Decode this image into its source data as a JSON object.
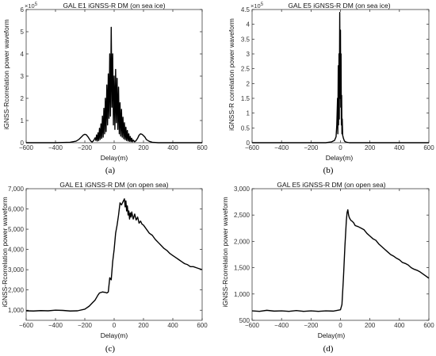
{
  "figure": {
    "captions": [
      "(a)",
      "(b)",
      "(c)",
      "(d)"
    ]
  },
  "chart_data": [
    {
      "type": "line",
      "title": "GAL E1 iGNSS-R DM (on sea ice)",
      "xlabel": "Delay(m)",
      "ylabel": "iGNSS-Rcorrelation power waveform",
      "xlim": [
        -600,
        600
      ],
      "ylim": [
        0,
        600000
      ],
      "xticks": [
        -600,
        -400,
        -200,
        0,
        200,
        400,
        600
      ],
      "yticks": [
        0,
        100000,
        200000,
        300000,
        400000,
        500000,
        600000
      ],
      "ytick_labels": [
        "0",
        "1",
        "2",
        "3",
        "4",
        "5",
        "6"
      ],
      "exponent_base": "×10",
      "exponent_power": "5",
      "grid": false,
      "series": [
        {
          "x": [
            -600,
            -500,
            -400,
            -300,
            -260,
            -240,
            -220,
            -210,
            -200,
            -190,
            -180,
            -170,
            -160,
            -150,
            -140,
            -130,
            -125,
            -120,
            -115,
            -110,
            -105,
            -100,
            -95,
            -90,
            -85,
            -80,
            -75,
            -70,
            -65,
            -60,
            -55,
            -50,
            -45,
            -40,
            -35,
            -30,
            -25,
            -20,
            -15,
            -10,
            -5,
            0,
            5,
            10,
            15,
            20,
            25,
            30,
            35,
            40,
            45,
            50,
            55,
            60,
            65,
            70,
            75,
            80,
            85,
            90,
            95,
            100,
            105,
            110,
            115,
            120,
            125,
            130,
            140,
            150,
            160,
            170,
            180,
            190,
            200,
            210,
            220,
            240,
            260,
            300,
            400,
            500,
            600
          ],
          "y": [
            0,
            0,
            0,
            2000,
            7000,
            15000,
            28000,
            35000,
            38000,
            36000,
            28000,
            18000,
            8000,
            3000,
            10000,
            22000,
            10000,
            35000,
            8000,
            45000,
            10000,
            65000,
            15000,
            85000,
            20000,
            120000,
            25000,
            155000,
            40000,
            200000,
            50000,
            260000,
            80000,
            310000,
            110000,
            400000,
            120000,
            520000,
            160000,
            400000,
            80000,
            300000,
            60000,
            330000,
            90000,
            290000,
            60000,
            250000,
            40000,
            180000,
            30000,
            150000,
            25000,
            115000,
            18000,
            90000,
            14000,
            70000,
            10000,
            55000,
            8000,
            40000,
            6000,
            28000,
            5000,
            20000,
            4000,
            12000,
            4000,
            10000,
            20000,
            34000,
            40000,
            38000,
            32000,
            25000,
            14000,
            6000,
            2000,
            0,
            0,
            0,
            0
          ]
        }
      ]
    },
    {
      "type": "line",
      "title": "GAL E5 iGNSS-R DM (on sea ice)",
      "xlabel": "Delay(m)",
      "ylabel": "iGNSS-R correlation power waveform",
      "xlim": [
        -600,
        600
      ],
      "ylim": [
        0,
        450000
      ],
      "xticks": [
        -600,
        -400,
        -200,
        0,
        200,
        400,
        600
      ],
      "yticks": [
        0,
        50000,
        100000,
        150000,
        200000,
        250000,
        300000,
        350000,
        400000,
        450000
      ],
      "ytick_labels": [
        "0",
        "0.5",
        "1",
        "1.5",
        "2",
        "2.5",
        "3",
        "3.5",
        "4",
        "4.5"
      ],
      "exponent_base": "×10",
      "exponent_power": "5",
      "grid": false,
      "series": [
        {
          "x": [
            -600,
            -200,
            -100,
            -60,
            -40,
            -30,
            -25,
            -20,
            -18,
            -15,
            -13,
            -10,
            -8,
            -5,
            -2,
            0,
            2,
            4,
            6,
            8,
            10,
            12,
            15,
            20,
            25,
            30,
            40,
            60,
            100,
            200,
            600
          ],
          "y": [
            0,
            0,
            0,
            3000,
            8000,
            20000,
            60000,
            150000,
            30000,
            260000,
            60000,
            300000,
            80000,
            440000,
            150000,
            380000,
            120000,
            300000,
            60000,
            160000,
            30000,
            80000,
            25000,
            15000,
            8000,
            4000,
            2000,
            0,
            0,
            0,
            0
          ]
        }
      ]
    },
    {
      "type": "line",
      "title": "GAL E1 iGNSS-R DM (on open sea)",
      "xlabel": "Delay(m)",
      "ylabel": "iGNSS-Rcorrelation power waveform",
      "xlim": [
        -600,
        600
      ],
      "ylim": [
        500,
        7000
      ],
      "xticks": [
        -600,
        -400,
        -200,
        0,
        200,
        400,
        600
      ],
      "yticks": [
        1000,
        2000,
        3000,
        4000,
        5000,
        6000,
        7000
      ],
      "ytick_labels": [
        "1,000",
        "2,000",
        "3,000",
        "4,000",
        "5,000",
        "6,000",
        "7,000"
      ],
      "grid": false,
      "series": [
        {
          "x": [
            -600,
            -550,
            -500,
            -450,
            -400,
            -350,
            -300,
            -250,
            -200,
            -170,
            -150,
            -130,
            -110,
            -100,
            -80,
            -60,
            -50,
            -40,
            -30,
            -20,
            -10,
            0,
            10,
            20,
            30,
            40,
            50,
            60,
            70,
            75,
            80,
            85,
            90,
            95,
            100,
            105,
            110,
            115,
            120,
            130,
            140,
            150,
            160,
            170,
            180,
            190,
            200,
            220,
            240,
            260,
            280,
            300,
            320,
            340,
            360,
            380,
            400,
            420,
            440,
            460,
            480,
            500,
            520,
            540,
            560,
            580,
            600
          ],
          "y": [
            970,
            960,
            980,
            970,
            1000,
            990,
            960,
            970,
            1050,
            1200,
            1350,
            1500,
            1750,
            1850,
            1900,
            1880,
            1850,
            1900,
            2600,
            2500,
            3400,
            4000,
            4800,
            5200,
            5700,
            6300,
            6200,
            6350,
            6500,
            6100,
            6400,
            5900,
            6150,
            5700,
            5900,
            5500,
            5800,
            5600,
            5850,
            5500,
            5750,
            5450,
            5600,
            5300,
            5400,
            5250,
            5200,
            5000,
            4800,
            4700,
            4500,
            4350,
            4200,
            4050,
            3950,
            3800,
            3700,
            3600,
            3500,
            3400,
            3300,
            3250,
            3150,
            3150,
            3100,
            3050,
            3000
          ]
        }
      ]
    },
    {
      "type": "line",
      "title": "GAL E5 iGNSS-R DM (on open sea)",
      "xlabel": "Delay(m)",
      "ylabel": "iGNSS-Rcorrelation power waveform",
      "xlim": [
        -600,
        600
      ],
      "ylim": [
        500,
        3000
      ],
      "xticks": [
        -600,
        -400,
        -200,
        0,
        200,
        400,
        600
      ],
      "yticks": [
        500,
        1000,
        1500,
        2000,
        2500,
        3000
      ],
      "ytick_labels": [
        "500",
        "1,000",
        "1,500",
        "2,000",
        "2,500",
        "3,000"
      ],
      "grid": false,
      "series": [
        {
          "x": [
            -600,
            -550,
            -500,
            -450,
            -400,
            -350,
            -300,
            -250,
            -200,
            -150,
            -100,
            -50,
            0,
            10,
            20,
            30,
            40,
            45,
            50,
            55,
            60,
            70,
            80,
            90,
            100,
            120,
            140,
            160,
            180,
            200,
            220,
            240,
            260,
            280,
            300,
            320,
            340,
            360,
            380,
            400,
            420,
            440,
            460,
            480,
            500,
            520,
            540,
            560,
            580,
            600
          ],
          "y": [
            680,
            670,
            690,
            675,
            680,
            670,
            685,
            670,
            680,
            670,
            680,
            675,
            700,
            800,
            1300,
            1900,
            2400,
            2550,
            2600,
            2500,
            2450,
            2400,
            2380,
            2350,
            2300,
            2280,
            2250,
            2220,
            2150,
            2100,
            2050,
            2020,
            1950,
            1900,
            1850,
            1800,
            1750,
            1720,
            1680,
            1650,
            1600,
            1580,
            1550,
            1500,
            1470,
            1450,
            1420,
            1380,
            1340,
            1300
          ]
        }
      ]
    }
  ]
}
